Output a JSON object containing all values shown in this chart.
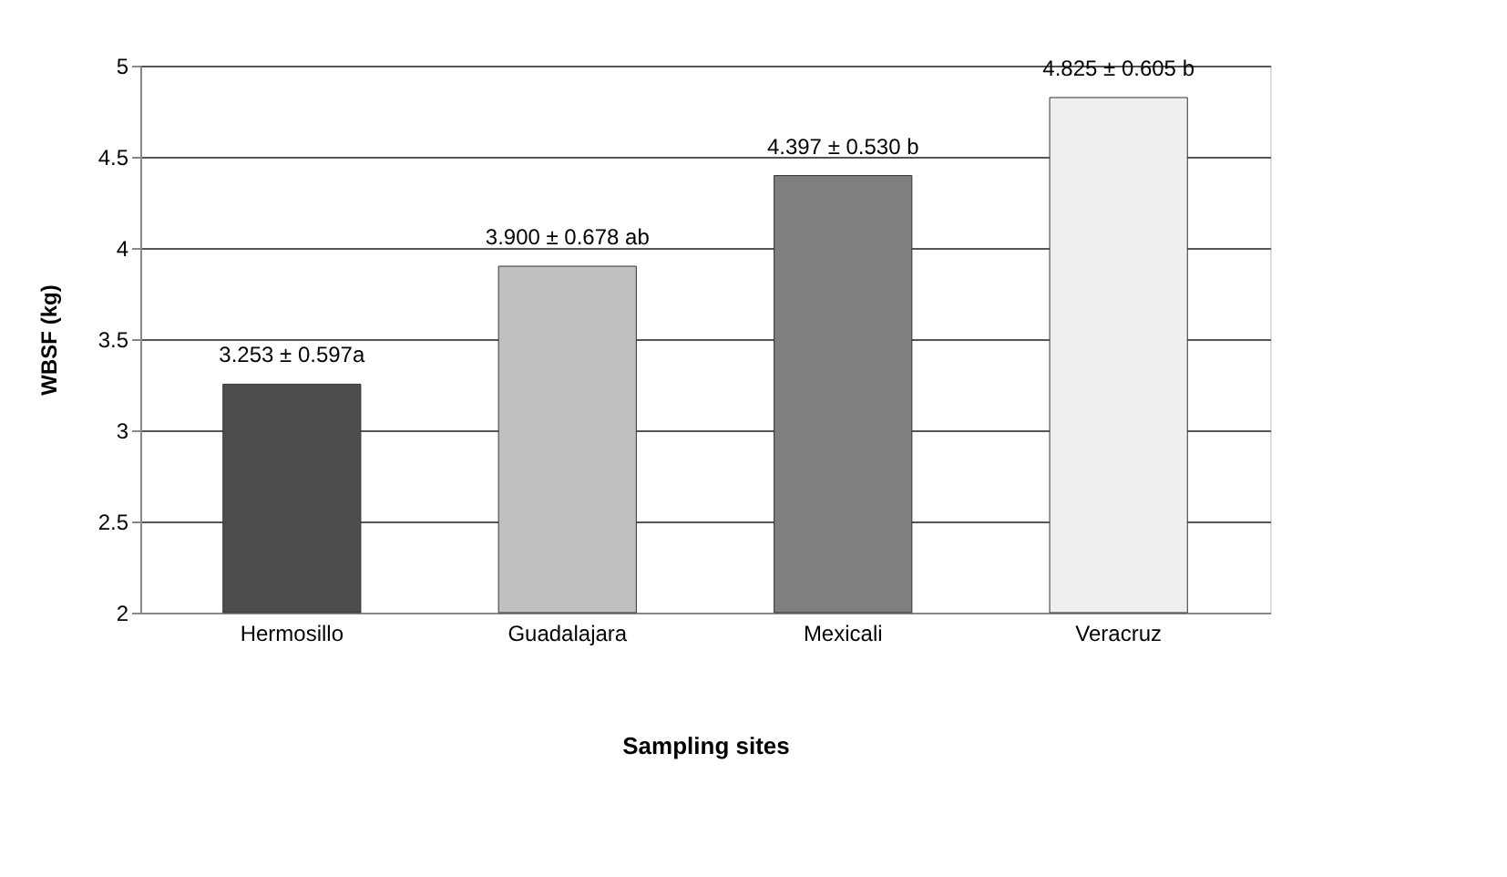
{
  "chart_data": {
    "type": "bar",
    "xlabel": "Sampling sites",
    "ylabel": "WBSF (kg)",
    "categories": [
      "Hermosillo",
      "Guadalajara",
      "Mexicali",
      "Veracruz"
    ],
    "values": [
      3.253,
      3.9,
      4.397,
      4.825
    ],
    "colors": [
      "#4d4d4d",
      "#c0c0c0",
      "#7f7f7f",
      "#efefef"
    ],
    "value_labels": [
      "3.253 ± 0.597a",
      "3.900 ± 0.678 ab",
      "4.397 ± 0.530 b",
      "4.825 ± 0.605 b"
    ],
    "ylim": [
      2,
      5
    ],
    "yticks": [
      2,
      2.5,
      3,
      3.5,
      4,
      4.5,
      5
    ],
    "grid": "y"
  }
}
